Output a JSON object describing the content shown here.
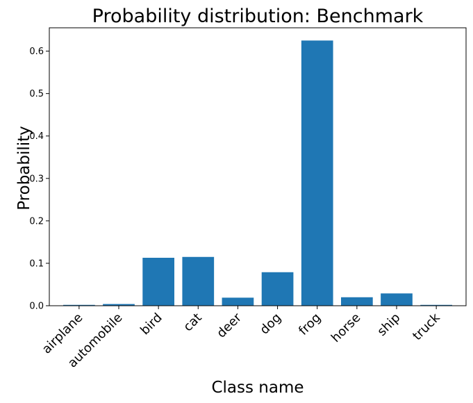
{
  "chart_data": {
    "type": "bar",
    "title": "Probability distribution: Benchmark",
    "xlabel": "Class name",
    "ylabel": "Probability",
    "categories": [
      "airplane",
      "automobile",
      "bird",
      "cat",
      "deer",
      "dog",
      "frog",
      "horse",
      "ship",
      "truck"
    ],
    "values": [
      0.002,
      0.004,
      0.113,
      0.115,
      0.019,
      0.079,
      0.625,
      0.02,
      0.029,
      0.002
    ],
    "ylim": [
      0,
      0.655
    ],
    "yticks": [
      "0.0",
      "0.1",
      "0.2",
      "0.3",
      "0.4",
      "0.5",
      "0.6"
    ],
    "grid": false,
    "bar_color": "#1f77b4"
  }
}
